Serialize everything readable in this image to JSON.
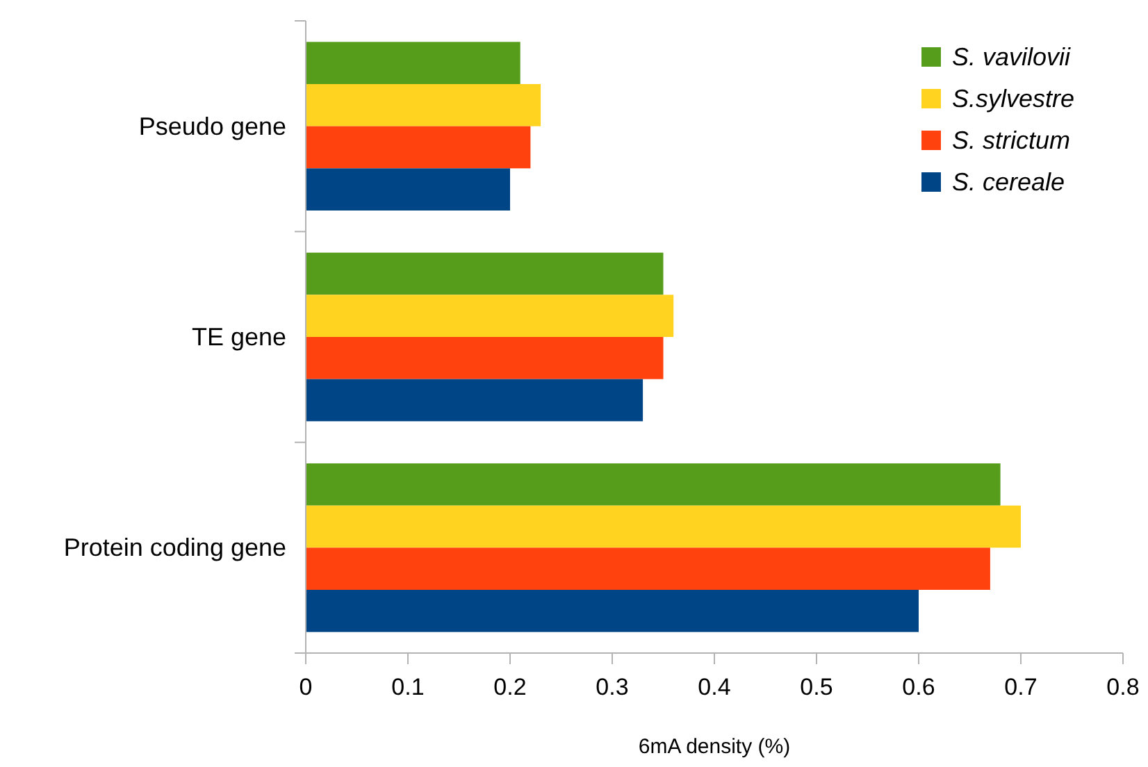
{
  "chart_data": {
    "type": "bar",
    "orientation": "horizontal",
    "xlabel": "6mA density (%)",
    "categories": [
      "Pseudo gene",
      "TE gene",
      "Protein coding gene"
    ],
    "series": [
      {
        "name": "S. vavilovii",
        "color": "#579d1c",
        "values": [
          0.21,
          0.35,
          0.68
        ]
      },
      {
        "name": "S.sylvestre",
        "color": "#ffd320",
        "values": [
          0.23,
          0.36,
          0.7
        ]
      },
      {
        "name": "S. strictum",
        "color": "#ff420e",
        "values": [
          0.22,
          0.35,
          0.67
        ]
      },
      {
        "name": "S. cereale",
        "color": "#004586",
        "values": [
          0.2,
          0.33,
          0.6
        ]
      }
    ],
    "xlim": [
      0,
      0.8
    ],
    "xticks": [
      0,
      0.1,
      0.2,
      0.3,
      0.4,
      0.5,
      0.6,
      0.7,
      0.8
    ],
    "grid": false,
    "legend": "top right"
  }
}
